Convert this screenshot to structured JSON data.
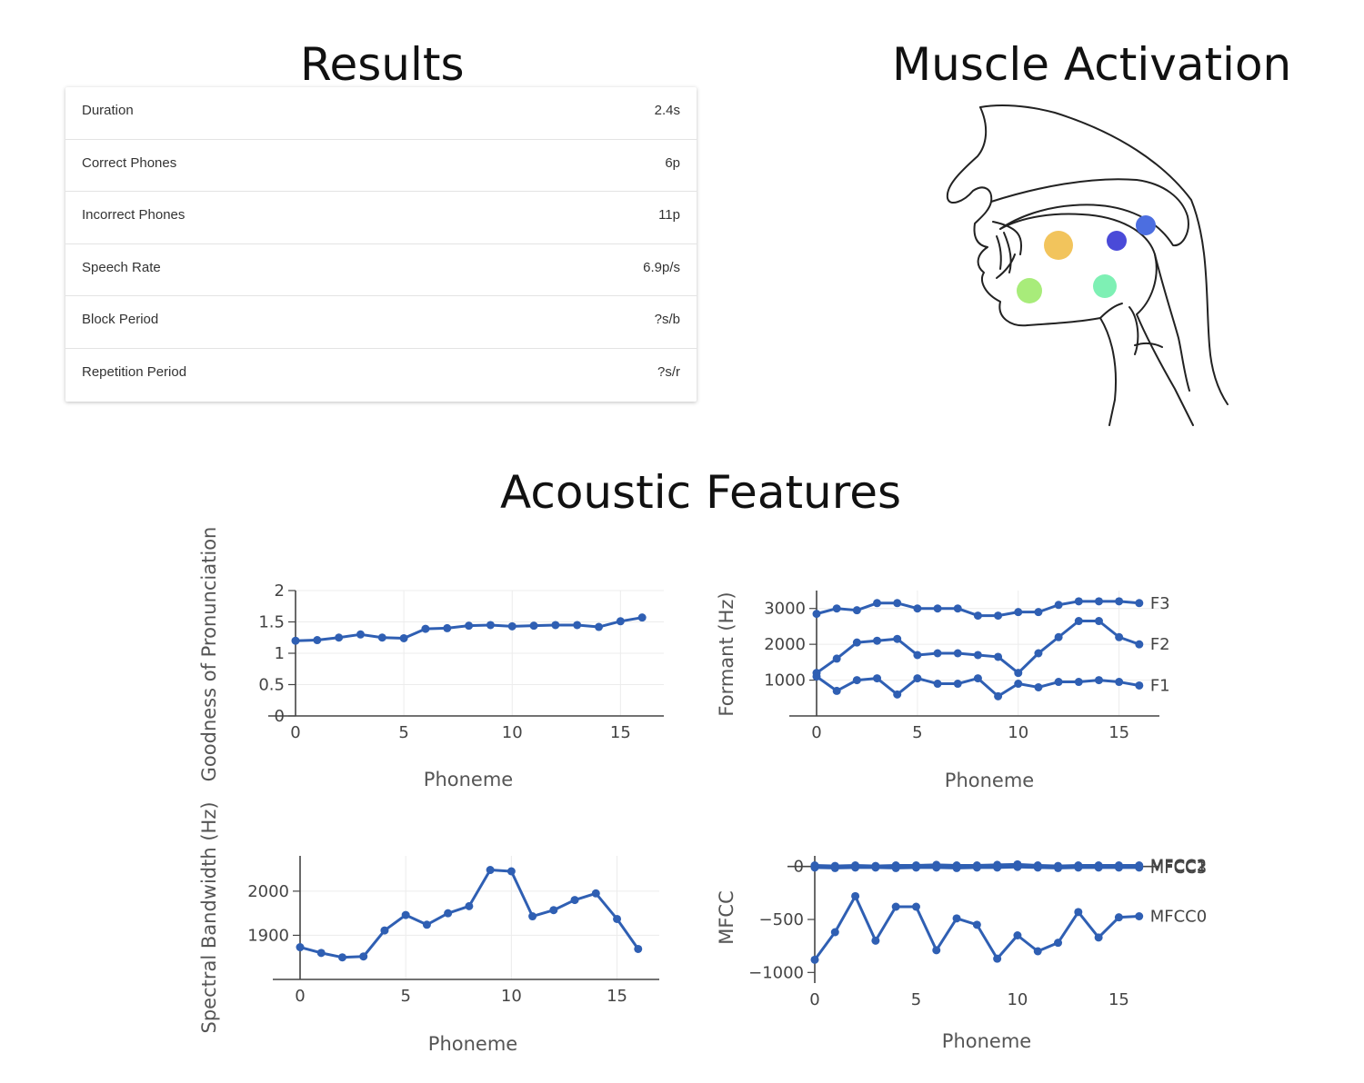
{
  "headings": {
    "results": "Results",
    "muscle": "Muscle Activation",
    "acoustic": "Acoustic Features"
  },
  "results": {
    "rows": [
      {
        "label": "Duration",
        "value": "2.4s"
      },
      {
        "label": "Correct Phones",
        "value": "6p"
      },
      {
        "label": "Incorrect Phones",
        "value": "11p"
      },
      {
        "label": "Speech Rate",
        "value": "6.9p/s"
      },
      {
        "label": "Block Period",
        "value": "?s/b"
      },
      {
        "label": "Repetition Period",
        "value": "?s/r"
      }
    ]
  },
  "muscle_activation": {
    "line_color": "#222222",
    "dots": [
      {
        "name": "upper-lip-activation",
        "color": "#f2c45c"
      },
      {
        "name": "tongue-body-activation",
        "color": "#4a4ad8"
      },
      {
        "name": "velum-activation",
        "color": "#4c6ee0"
      },
      {
        "name": "jaw-activation",
        "color": "#a8ec7a"
      },
      {
        "name": "tongue-root-activation",
        "color": "#7ef0b4"
      }
    ]
  },
  "colors": {
    "series": "#2f5fb3",
    "axis": "#444444"
  },
  "chart_data": [
    {
      "id": "gop",
      "type": "line",
      "xlabel": "Phoneme",
      "ylabel": "Goodness of Pronunciation",
      "xlim": [
        0,
        17
      ],
      "ylim": [
        0,
        2
      ],
      "xticks": [
        0,
        5,
        10,
        15
      ],
      "yticks": [
        0,
        0.5,
        1,
        1.5,
        2
      ],
      "ytick_labels": [
        "0",
        "0.5",
        "1",
        "1.5",
        "2"
      ],
      "grid": true,
      "series": [
        {
          "values": [
            [
              0,
              1.2
            ],
            [
              1,
              1.21
            ],
            [
              2,
              1.25
            ],
            [
              3,
              1.3
            ],
            [
              4,
              1.25
            ],
            [
              5,
              1.24
            ],
            [
              6,
              1.39
            ],
            [
              7,
              1.4
            ],
            [
              8,
              1.44
            ],
            [
              9,
              1.45
            ],
            [
              10,
              1.43
            ],
            [
              11,
              1.44
            ],
            [
              12,
              1.45
            ],
            [
              13,
              1.45
            ],
            [
              14,
              1.42
            ],
            [
              15,
              1.51
            ],
            [
              16,
              1.57
            ]
          ]
        }
      ]
    },
    {
      "id": "formant",
      "type": "line",
      "xlabel": "Phoneme",
      "ylabel": "Formant (Hz)",
      "xlim": [
        0,
        17
      ],
      "ylim": [
        0,
        3500
      ],
      "xticks": [
        0,
        5,
        10,
        15
      ],
      "yticks": [
        1000,
        2000,
        3000
      ],
      "ytick_labels": [
        "1000",
        "2000",
        "3000"
      ],
      "grid": true,
      "series": [
        {
          "name": "F3",
          "values": [
            [
              0,
              2850
            ],
            [
              1,
              3000
            ],
            [
              2,
              2950
            ],
            [
              3,
              3150
            ],
            [
              4,
              3150
            ],
            [
              5,
              3000
            ],
            [
              6,
              3000
            ],
            [
              7,
              3000
            ],
            [
              8,
              2800
            ],
            [
              9,
              2800
            ],
            [
              10,
              2900
            ],
            [
              11,
              2900
            ],
            [
              12,
              3100
            ],
            [
              13,
              3200
            ],
            [
              14,
              3200
            ],
            [
              15,
              3200
            ],
            [
              16,
              3150
            ]
          ]
        },
        {
          "name": "F2",
          "values": [
            [
              0,
              1200
            ],
            [
              1,
              1600
            ],
            [
              2,
              2050
            ],
            [
              3,
              2100
            ],
            [
              4,
              2150
            ],
            [
              5,
              1700
            ],
            [
              6,
              1750
            ],
            [
              7,
              1750
            ],
            [
              8,
              1700
            ],
            [
              9,
              1650
            ],
            [
              10,
              1200
            ],
            [
              11,
              1750
            ],
            [
              12,
              2200
            ],
            [
              13,
              2650
            ],
            [
              14,
              2650
            ],
            [
              15,
              2200
            ],
            [
              16,
              2000
            ]
          ]
        },
        {
          "name": "F1",
          "values": [
            [
              0,
              1100
            ],
            [
              1,
              700
            ],
            [
              2,
              1000
            ],
            [
              3,
              1050
            ],
            [
              4,
              600
            ],
            [
              5,
              1050
            ],
            [
              6,
              900
            ],
            [
              7,
              900
            ],
            [
              8,
              1050
            ],
            [
              9,
              550
            ],
            [
              10,
              900
            ],
            [
              11,
              800
            ],
            [
              12,
              950
            ],
            [
              13,
              950
            ],
            [
              14,
              1000
            ],
            [
              15,
              950
            ],
            [
              16,
              850
            ]
          ]
        }
      ]
    },
    {
      "id": "bandwidth",
      "type": "line",
      "xlabel": "Phoneme",
      "ylabel": "Spectral Bandwidth (Hz)",
      "xlim": [
        0,
        17
      ],
      "ylim": [
        1800,
        2080
      ],
      "xticks": [
        0,
        5,
        10,
        15
      ],
      "yticks": [
        1900,
        2000
      ],
      "ytick_labels": [
        "1900",
        "2000"
      ],
      "grid": true,
      "series": [
        {
          "values": [
            [
              0,
              1873
            ],
            [
              1,
              1860
            ],
            [
              2,
              1850
            ],
            [
              3,
              1852
            ],
            [
              4,
              1911
            ],
            [
              5,
              1946
            ],
            [
              6,
              1924
            ],
            [
              7,
              1950
            ],
            [
              8,
              1966
            ],
            [
              9,
              2048
            ],
            [
              10,
              2045
            ],
            [
              11,
              1943
            ],
            [
              12,
              1957
            ],
            [
              13,
              1980
            ],
            [
              14,
              1995
            ],
            [
              15,
              1937
            ],
            [
              16,
              1869
            ]
          ]
        }
      ]
    },
    {
      "id": "mfcc",
      "type": "line",
      "xlabel": "Phoneme",
      "ylabel": "MFCC",
      "xlim": [
        0,
        17
      ],
      "ylim": [
        -1100,
        100
      ],
      "xticks": [
        0,
        5,
        10,
        15
      ],
      "yticks": [
        -1000,
        -500,
        0
      ],
      "ytick_labels": [
        "−1000",
        "−500",
        "0"
      ],
      "grid": false,
      "series": [
        {
          "name": "MFCC1",
          "values": [
            [
              0,
              0
            ],
            [
              1,
              -5
            ],
            [
              2,
              0
            ],
            [
              3,
              -5
            ],
            [
              4,
              0
            ],
            [
              5,
              5
            ],
            [
              6,
              0
            ],
            [
              7,
              -5
            ],
            [
              8,
              0
            ],
            [
              9,
              5
            ],
            [
              10,
              0
            ],
            [
              11,
              -5
            ],
            [
              12,
              0
            ],
            [
              13,
              5
            ],
            [
              14,
              0
            ],
            [
              15,
              0
            ],
            [
              16,
              0
            ]
          ]
        },
        {
          "name": "MFCC2",
          "values": [
            [
              0,
              10
            ],
            [
              1,
              5
            ],
            [
              2,
              10
            ],
            [
              3,
              5
            ],
            [
              4,
              10
            ],
            [
              5,
              10
            ],
            [
              6,
              15
            ],
            [
              7,
              10
            ],
            [
              8,
              10
            ],
            [
              9,
              15
            ],
            [
              10,
              20
            ],
            [
              11,
              10
            ],
            [
              12,
              5
            ],
            [
              13,
              10
            ],
            [
              14,
              10
            ],
            [
              15,
              10
            ],
            [
              16,
              10
            ]
          ]
        },
        {
          "name": "MFCC3",
          "values": [
            [
              0,
              -10
            ],
            [
              1,
              -15
            ],
            [
              2,
              -10
            ],
            [
              3,
              -10
            ],
            [
              4,
              -15
            ],
            [
              5,
              -10
            ],
            [
              6,
              -10
            ],
            [
              7,
              -15
            ],
            [
              8,
              -10
            ],
            [
              9,
              -10
            ],
            [
              10,
              -5
            ],
            [
              11,
              -10
            ],
            [
              12,
              -15
            ],
            [
              13,
              -10
            ],
            [
              14,
              -10
            ],
            [
              15,
              -10
            ],
            [
              16,
              -10
            ]
          ]
        },
        {
          "name": "MFCC0",
          "values": [
            [
              0,
              -880
            ],
            [
              1,
              -620
            ],
            [
              2,
              -280
            ],
            [
              3,
              -700
            ],
            [
              4,
              -380
            ],
            [
              5,
              -380
            ],
            [
              6,
              -790
            ],
            [
              7,
              -490
            ],
            [
              8,
              -550
            ],
            [
              9,
              -870
            ],
            [
              10,
              -650
            ],
            [
              11,
              -800
            ],
            [
              12,
              -720
            ],
            [
              13,
              -430
            ],
            [
              14,
              -670
            ],
            [
              15,
              -480
            ],
            [
              16,
              -470
            ]
          ]
        }
      ]
    }
  ]
}
